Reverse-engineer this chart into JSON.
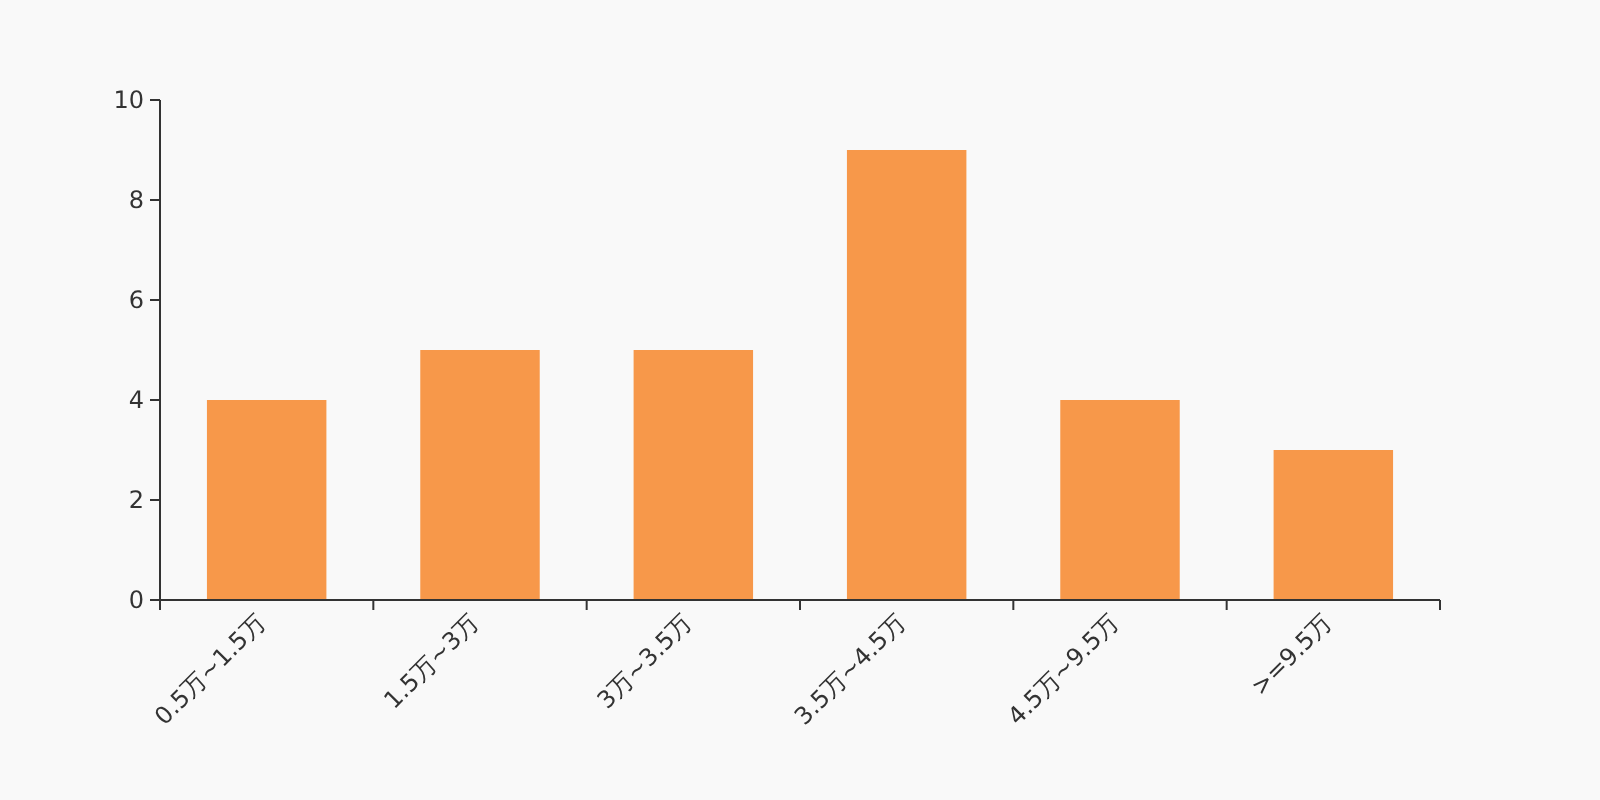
{
  "chart_data": {
    "type": "bar",
    "categories": [
      "0.5万~1.5万",
      "1.5万~3万",
      "3万~3.5万",
      "3.5万~4.5万",
      "4.5万~9.5万",
      ">=9.5万"
    ],
    "values": [
      4,
      5,
      5,
      9,
      4,
      3
    ],
    "color": "#f7984a",
    "ylim": [
      0,
      10
    ],
    "yticks": [
      0,
      2,
      4,
      6,
      8,
      10
    ]
  }
}
